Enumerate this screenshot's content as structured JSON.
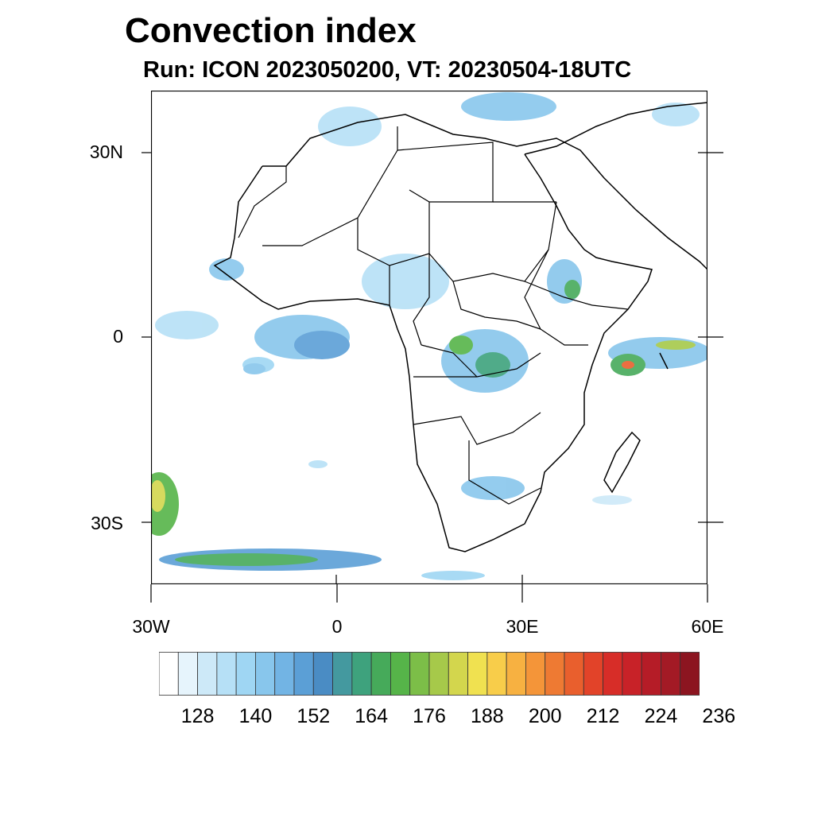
{
  "header": {
    "title": "Convection index",
    "subtitle": "Run: ICON 2023050200,  VT: 20230504-18UTC"
  },
  "map": {
    "region": "Africa",
    "lon_range": [
      -30,
      60
    ],
    "lat_range": [
      -40,
      40
    ],
    "lat_labels": [
      "30N",
      "0",
      "30S"
    ],
    "lon_labels": [
      "30W",
      "0",
      "30E",
      "60E"
    ]
  },
  "colorbar": {
    "labels": [
      "128",
      "140",
      "152",
      "164",
      "176",
      "188",
      "200",
      "212",
      "224",
      "236"
    ],
    "colors": [
      "#ffffff",
      "#e6f4fc",
      "#cde9f8",
      "#b6e0f6",
      "#9fd6f3",
      "#88c6ec",
      "#72b4e4",
      "#5b9fd6",
      "#4a8cc4",
      "#44999f",
      "#3ea27d",
      "#46aa5a",
      "#56b449",
      "#7cbe48",
      "#a6c94a",
      "#d3d64d",
      "#f0e150",
      "#f8cd4a",
      "#f7b141",
      "#f49539",
      "#ee7a33",
      "#e95f2d",
      "#e24329",
      "#d72d28",
      "#c82228",
      "#b51c27",
      "#a31a25",
      "#8c1520"
    ]
  }
}
